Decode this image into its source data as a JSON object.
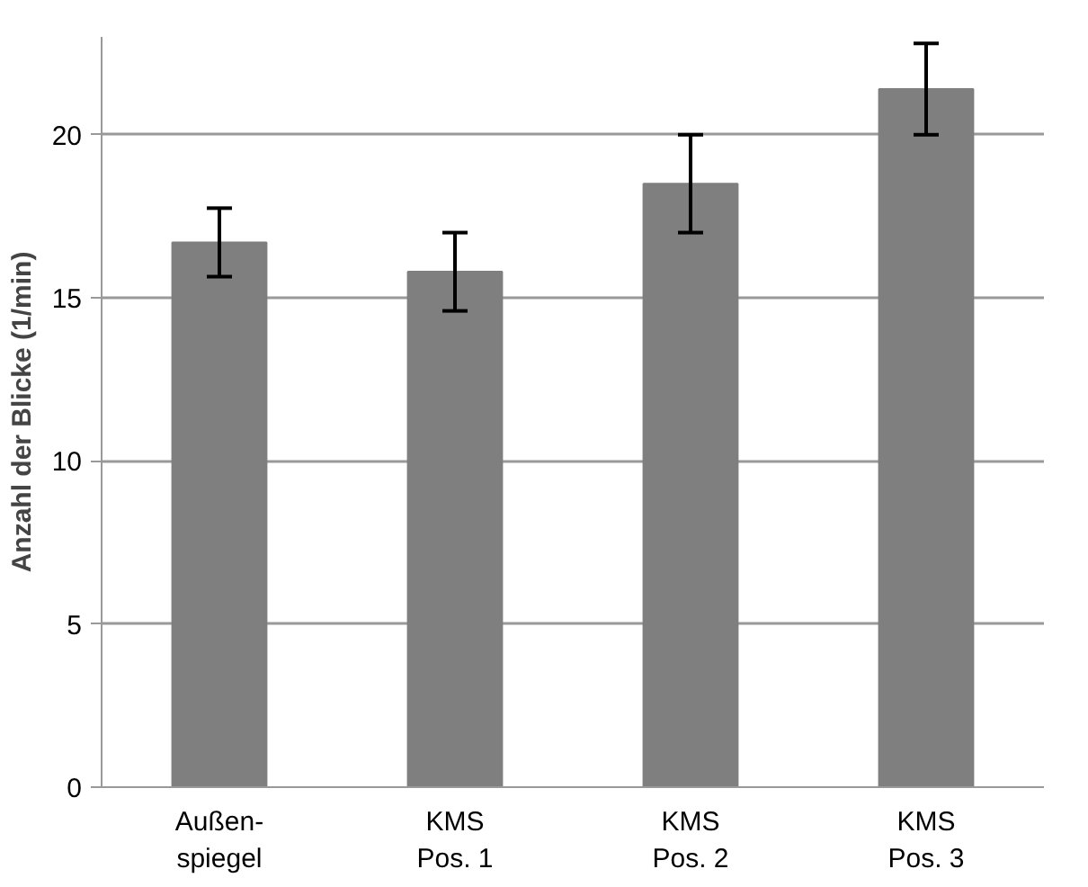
{
  "chart_data": {
    "type": "bar",
    "ylabel": "Anzahl der Blicke (1/min)",
    "categories": [
      "Außen-\nspiegel",
      "KMS\nPos. 1",
      "KMS\nPos. 2",
      "KMS\nPos. 3"
    ],
    "values": [
      16.7,
      15.8,
      18.5,
      21.4
    ],
    "errors": [
      1.05,
      1.2,
      1.5,
      1.4
    ],
    "color": "#7f7f7f",
    "ylim": [
      0,
      23
    ],
    "yticks": [
      0,
      5,
      10,
      15,
      20
    ],
    "grid": "y"
  }
}
